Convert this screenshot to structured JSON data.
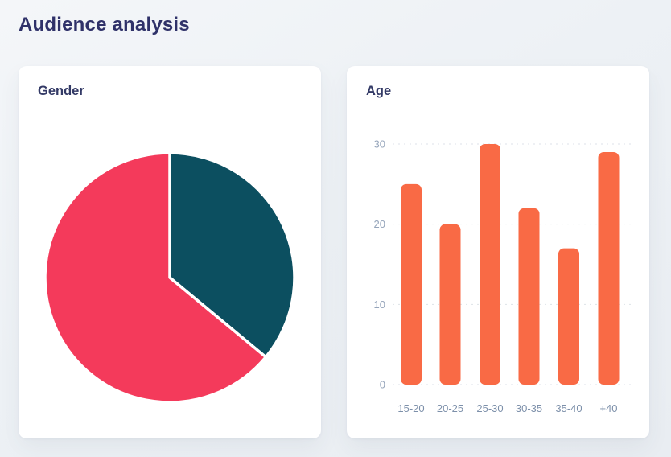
{
  "page": {
    "title": "Audience analysis"
  },
  "cards": {
    "gender": {
      "title": "Gender"
    },
    "age": {
      "title": "Age"
    }
  },
  "chart_data": [
    {
      "type": "pie",
      "title": "Gender",
      "start_angle_deg": 0,
      "direction": "clockwise",
      "stroke": "#ffffff",
      "slices": [
        {
          "id": "slice-teal",
          "percent": 36,
          "color": "#0c4f60"
        },
        {
          "id": "slice-pink",
          "percent": 64,
          "color": "#f43a5b"
        }
      ],
      "legend": "none",
      "data_labels": "none"
    },
    {
      "type": "bar",
      "title": "Age",
      "categories": [
        "15-20",
        "20-25",
        "25-30",
        "30-35",
        "35-40",
        "+40"
      ],
      "values": [
        25,
        20,
        30,
        22,
        17,
        29
      ],
      "ylim": [
        0,
        30
      ],
      "yticks": [
        0,
        10,
        20,
        30
      ],
      "xlabel": "",
      "ylabel": "",
      "grid": "horizontal-dotted",
      "bar_color": "#f96a45",
      "grid_color": "#dde2e8",
      "ytick_color": "#95a4ba",
      "xtick_color": "#7d90aa",
      "legend": "none"
    }
  ]
}
